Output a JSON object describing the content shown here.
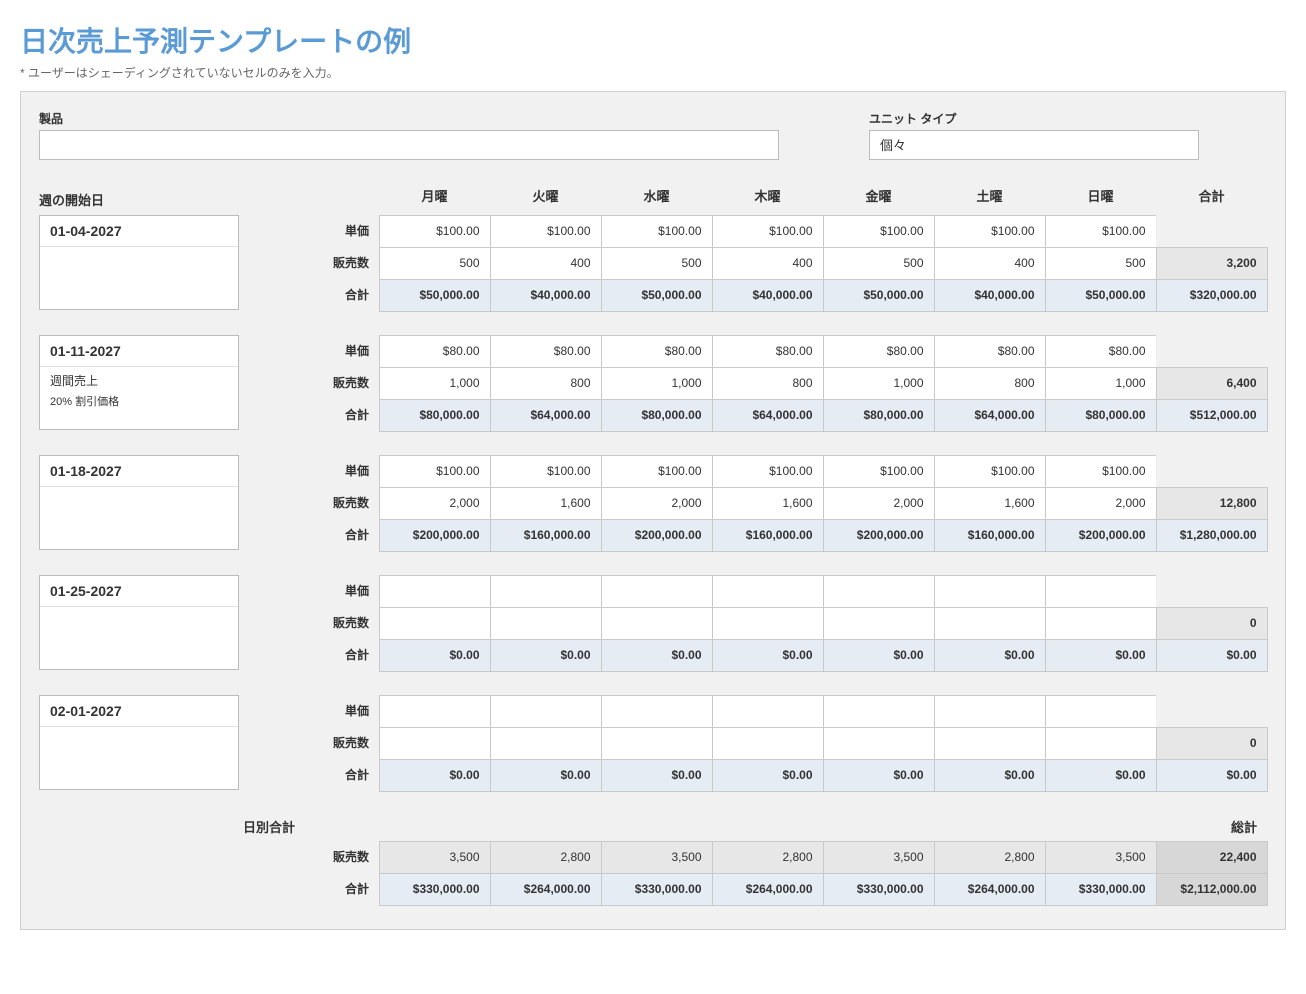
{
  "title": "日次売上予測テンプレートの例",
  "subtitle": "* ユーザーはシェーディングされていないセルのみを入力。",
  "labels": {
    "product": "製品",
    "unit_type": "ユニット タイプ",
    "unit_type_value": "個々",
    "week_start": "週の開始日",
    "unit_price": "単価",
    "qty": "販売数",
    "total": "合計",
    "daily_total": "日別合計",
    "grand_total": "総計"
  },
  "days": [
    "月曜",
    "火曜",
    "水曜",
    "木曜",
    "金曜",
    "土曜",
    "日曜",
    "合計"
  ],
  "colors": {
    "title": "#5b9bd5",
    "sheet_bg": "#f1f1f1",
    "border": "#c9c9c9",
    "shade_blue": "#e5ecf4",
    "shade_gray": "#e7e7e7",
    "shade_dark": "#d7d7d7",
    "input_bg": "#ffffff"
  },
  "weeks": [
    {
      "date": "01-04-2027",
      "note1": "",
      "note2": "",
      "price": [
        "$100.00",
        "$100.00",
        "$100.00",
        "$100.00",
        "$100.00",
        "$100.00",
        "$100.00",
        ""
      ],
      "qty": [
        "500",
        "400",
        "500",
        "400",
        "500",
        "400",
        "500",
        "3,200"
      ],
      "total": [
        "$50,000.00",
        "$40,000.00",
        "$50,000.00",
        "$40,000.00",
        "$50,000.00",
        "$40,000.00",
        "$50,000.00",
        "$320,000.00"
      ]
    },
    {
      "date": "01-11-2027",
      "note1": "週間売上",
      "note2": "20% 割引価格",
      "price": [
        "$80.00",
        "$80.00",
        "$80.00",
        "$80.00",
        "$80.00",
        "$80.00",
        "$80.00",
        ""
      ],
      "qty": [
        "1,000",
        "800",
        "1,000",
        "800",
        "1,000",
        "800",
        "1,000",
        "6,400"
      ],
      "total": [
        "$80,000.00",
        "$64,000.00",
        "$80,000.00",
        "$64,000.00",
        "$80,000.00",
        "$64,000.00",
        "$80,000.00",
        "$512,000.00"
      ]
    },
    {
      "date": "01-18-2027",
      "note1": "",
      "note2": "",
      "price": [
        "$100.00",
        "$100.00",
        "$100.00",
        "$100.00",
        "$100.00",
        "$100.00",
        "$100.00",
        ""
      ],
      "qty": [
        "2,000",
        "1,600",
        "2,000",
        "1,600",
        "2,000",
        "1,600",
        "2,000",
        "12,800"
      ],
      "total": [
        "$200,000.00",
        "$160,000.00",
        "$200,000.00",
        "$160,000.00",
        "$200,000.00",
        "$160,000.00",
        "$200,000.00",
        "$1,280,000.00"
      ]
    },
    {
      "date": "01-25-2027",
      "note1": "",
      "note2": "",
      "price": [
        "",
        "",
        "",
        "",
        "",
        "",
        "",
        ""
      ],
      "qty": [
        "",
        "",
        "",
        "",
        "",
        "",
        "",
        "0"
      ],
      "total": [
        "$0.00",
        "$0.00",
        "$0.00",
        "$0.00",
        "$0.00",
        "$0.00",
        "$0.00",
        "$0.00"
      ]
    },
    {
      "date": "02-01-2027",
      "note1": "",
      "note2": "",
      "price": [
        "",
        "",
        "",
        "",
        "",
        "",
        "",
        ""
      ],
      "qty": [
        "",
        "",
        "",
        "",
        "",
        "",
        "",
        "0"
      ],
      "total": [
        "$0.00",
        "$0.00",
        "$0.00",
        "$0.00",
        "$0.00",
        "$0.00",
        "$0.00",
        "$0.00"
      ]
    }
  ],
  "daily": {
    "qty": [
      "3,500",
      "2,800",
      "3,500",
      "2,800",
      "3,500",
      "2,800",
      "3,500",
      "22,400"
    ],
    "total": [
      "$330,000.00",
      "$264,000.00",
      "$330,000.00",
      "$264,000.00",
      "$330,000.00",
      "$264,000.00",
      "$330,000.00",
      "$2,112,000.00"
    ]
  }
}
